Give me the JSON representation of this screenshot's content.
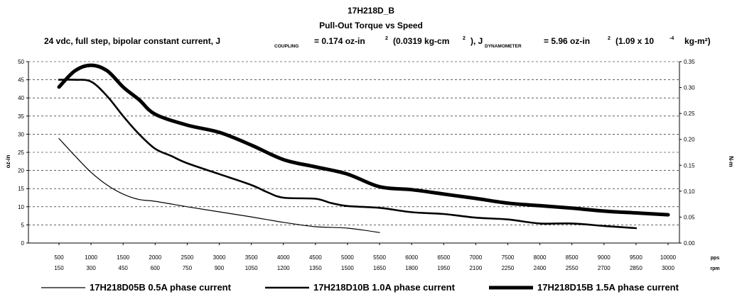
{
  "chart_data": {
    "type": "line",
    "title": "17H218D_B",
    "subtitle": "Pull-Out Torque vs Speed",
    "conditions": {
      "prefix": "24 vdc, full step, bipolar constant current, J",
      "coupling_sub": "COUPLING",
      "coupling_value": "= 0.174 oz-in",
      "sup2": "2",
      "coupling_metric": "(0.0319 kg-cm",
      "close_j": "), J",
      "dyn_sub": "DYNAMOMETER",
      "dyn_value": "= 5.96 oz-in",
      "dyn_metric": "(1.09 x 10",
      "exp_neg4": "-4",
      "dyn_unit": "kg-m²)"
    },
    "ylabel_left": "oz-in",
    "ylabel_right": "N-m",
    "x_unit_pps": "pps",
    "x_unit_rpm": "rpm",
    "ylim_left": [
      0,
      50
    ],
    "ylim_right": [
      0,
      0.35
    ],
    "xlim": [
      500,
      10000
    ],
    "yticks_left": [
      "0",
      "5",
      "10",
      "15",
      "20",
      "25",
      "30",
      "35",
      "40",
      "45",
      "50"
    ],
    "yticks_right": [
      "0.00",
      "0.05",
      "0.10",
      "0.15",
      "0.20",
      "0.25",
      "0.30",
      "0.35"
    ],
    "x_pps": [
      "500",
      "1000",
      "1500",
      "2000",
      "2500",
      "3000",
      "3500",
      "4000",
      "4500",
      "5000",
      "5500",
      "6000",
      "6500",
      "7000",
      "7500",
      "8000",
      "8500",
      "9000",
      "9500",
      "10000"
    ],
    "x_rpm": [
      "150",
      "300",
      "450",
      "600",
      "750",
      "900",
      "1050",
      "1200",
      "1350",
      "1500",
      "1650",
      "1800",
      "1950",
      "2100",
      "2250",
      "2400",
      "2550",
      "2700",
      "2850",
      "3000"
    ],
    "grid": "horizontal dashed",
    "legend_position": "bottom",
    "series": [
      {
        "name": "17H218D05B 0.5A phase current",
        "x": [
          500,
          750,
          1000,
          1250,
          1500,
          1750,
          2000,
          2500,
          3000,
          3500,
          4000,
          4500,
          5000,
          5500
        ],
        "y": [
          28.8,
          24,
          19.5,
          16,
          13.5,
          12,
          11.5,
          10,
          8.6,
          7.2,
          5.7,
          4.5,
          4.1,
          2.9
        ]
      },
      {
        "name": "17H218D10B 1.0A phase current",
        "x": [
          500,
          750,
          1000,
          1250,
          1500,
          1750,
          2000,
          2250,
          2500,
          3000,
          3500,
          3750,
          4000,
          4500,
          4750,
          5000,
          5500,
          6000,
          6500,
          7000,
          7500,
          8000,
          8500,
          9000,
          9500
        ],
        "y": [
          45,
          45,
          44.5,
          40.5,
          35,
          30,
          26,
          24,
          22,
          19,
          16,
          14,
          12.5,
          12.2,
          11,
          10.2,
          9.7,
          8.5,
          8,
          7,
          6.5,
          5.4,
          5.4,
          4.7,
          4.1
        ]
      },
      {
        "name": "17H218D15B 1.5A phase current",
        "x": [
          500,
          750,
          1000,
          1250,
          1500,
          1750,
          2000,
          2500,
          3000,
          3500,
          4000,
          4500,
          5000,
          5500,
          6000,
          6500,
          7000,
          7500,
          8000,
          8500,
          9000,
          9500,
          10000
        ],
        "y": [
          43,
          47.5,
          49,
          47.5,
          43,
          39.5,
          35.5,
          32.5,
          30.5,
          27,
          23,
          21,
          19,
          15.5,
          14.7,
          13.5,
          12.3,
          11,
          10.3,
          9.6,
          8.8,
          8.3,
          7.8
        ]
      }
    ]
  },
  "style": {
    "line_color": "#000000",
    "grid_color": "#000000",
    "series_stroke": [
      1.2,
      2.6,
      5.0
    ]
  }
}
